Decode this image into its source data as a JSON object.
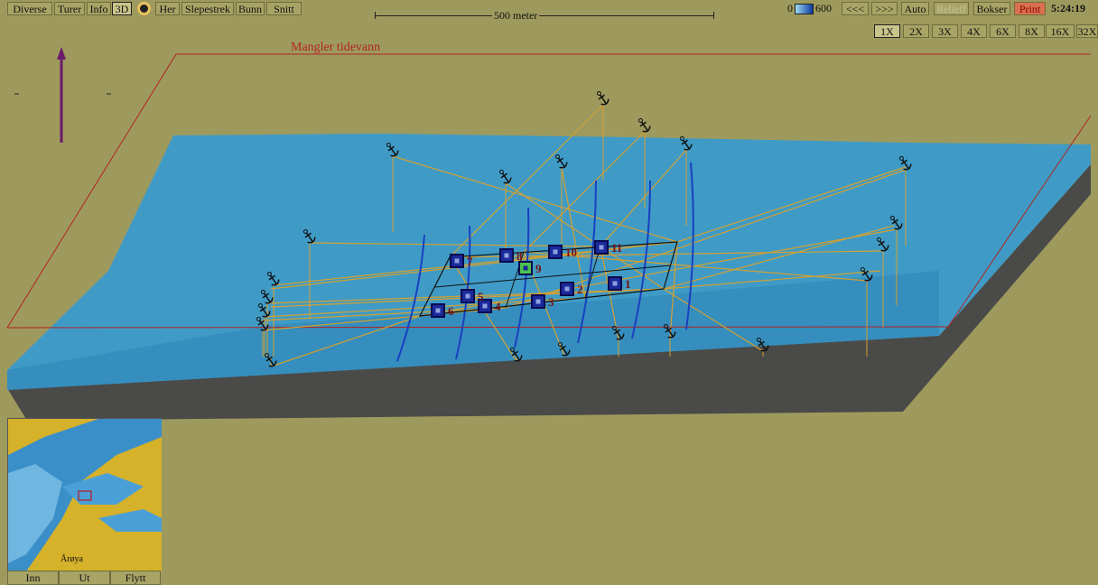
{
  "toolbar": {
    "left": [
      "Diverse",
      "Turer",
      "Info",
      "3D",
      "Her",
      "Slepestrek",
      "Bunn",
      "Snitt"
    ],
    "scale": "500 meter",
    "depth_min": "0",
    "depth_max": "600",
    "right": [
      "<<<",
      ">>>",
      "Auto",
      "Relieff",
      "Bokser",
      "Print"
    ],
    "clock": "5:24:19",
    "zoom": [
      "1X",
      "2X",
      "3X",
      "4X",
      "6X",
      "8X",
      "16X",
      "32X"
    ]
  },
  "warning": "Mangler tidevann",
  "markers": [
    "1",
    "2",
    "3",
    "4",
    "5",
    "6",
    "7",
    "8",
    "9",
    "10",
    "11"
  ],
  "minimap": {
    "place": "Årøya",
    "buttons": [
      "Inn",
      "Ut",
      "Flytt"
    ]
  }
}
